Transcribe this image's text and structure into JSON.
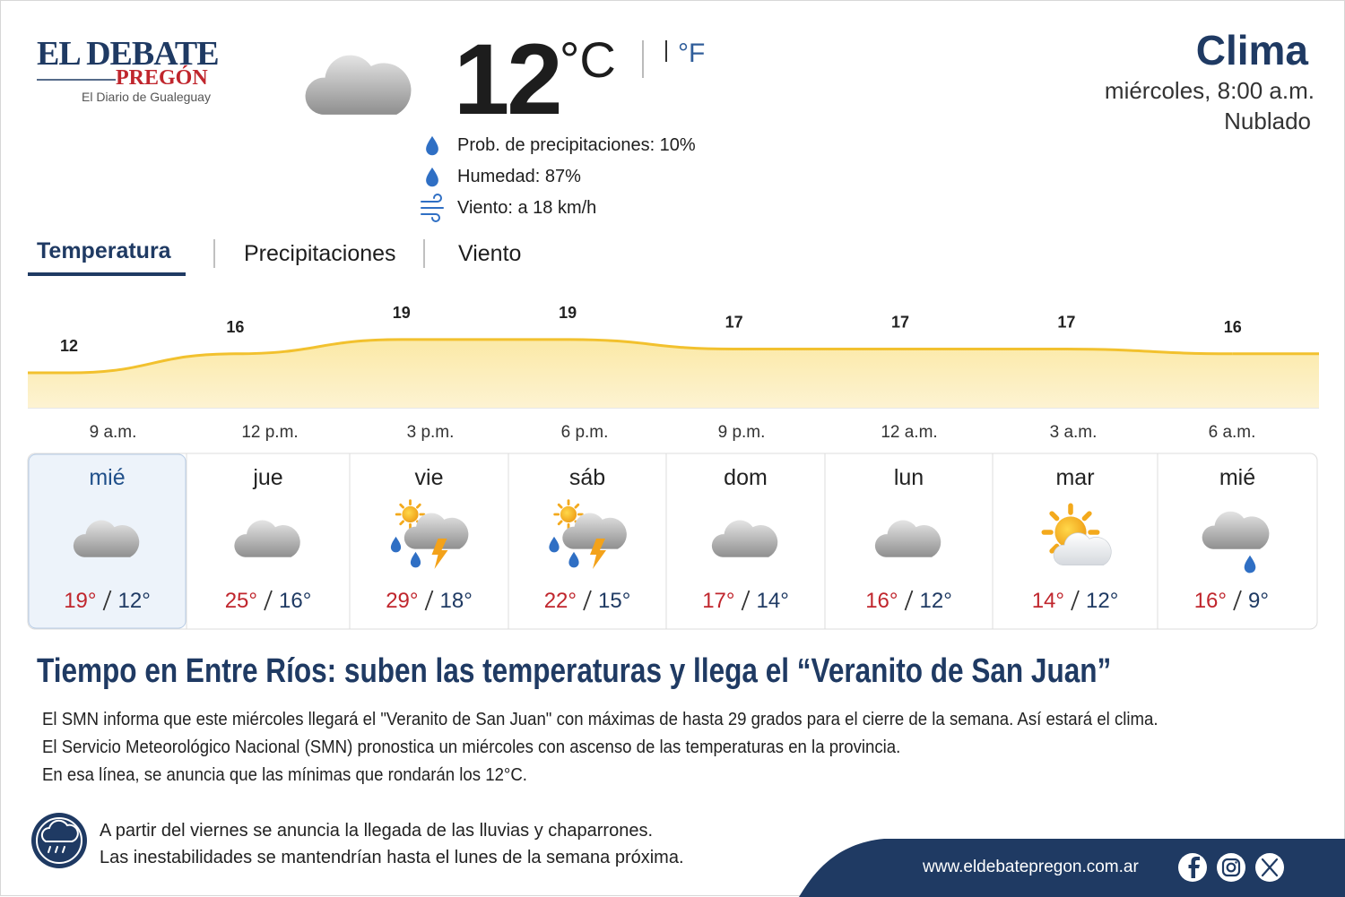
{
  "logo": {
    "line1": "EL DEBATE",
    "line2": "PREGÓN",
    "tagline": "El Diario de Gualeguay"
  },
  "current": {
    "temperature": 12,
    "unit_c": "°C",
    "unit_f": "°F",
    "details": [
      "Prob. de precipitaciones: 10%",
      "Humedad: 87%",
      "Viento: a 18 km/h"
    ]
  },
  "header": {
    "title": "Clima",
    "datetime": "miércoles, 8:00 a.m.",
    "condition": "Nublado"
  },
  "tabs": [
    "Temperatura",
    "Precipitaciones",
    "Viento"
  ],
  "hourly": {
    "times": [
      "9 a.m.",
      "12 p.m.",
      "3 p.m.",
      "6 p.m.",
      "9 p.m.",
      "12 a.m.",
      "3 a.m.",
      "6 a.m."
    ],
    "values": [
      12,
      16,
      19,
      19,
      17,
      17,
      17,
      16
    ]
  },
  "days": [
    {
      "day": "mié",
      "high": "19°",
      "low": "12°"
    },
    {
      "day": "jue",
      "high": "25°",
      "low": "16°"
    },
    {
      "day": "vie",
      "high": "29°",
      "low": "18°"
    },
    {
      "day": "sáb",
      "high": "22°",
      "low": "15°"
    },
    {
      "day": "dom",
      "high": "17°",
      "low": "14°"
    },
    {
      "day": "lun",
      "high": "16°",
      "low": "12°"
    },
    {
      "day": "mar",
      "high": "14°",
      "low": "12°"
    },
    {
      "day": "mié",
      "high": "16°",
      "low": "9°"
    }
  ],
  "article": {
    "headline": "Tiempo en Entre Ríos: suben las temperaturas y llega el “Veranito de San Juan”",
    "paragraphs": [
      "El SMN informa que este miércoles llegará el \"Veranito de San Juan\" con máximas de hasta 29 grados para el cierre de la semana. Así estará el clima.",
      "El Servicio Meteorológico Nacional (SMN) pronostica un miércoles con ascenso de las temperaturas en la provincia.",
      "En esa línea, se anuncia que las mínimas que rondarán los 12°C."
    ]
  },
  "notice": [
    "A partir del viernes se anuncia la llegada de las lluvias y chaparrones.",
    "Las inestabilidades se mantendrían hasta el lunes de la semana próxima."
  ],
  "footer": {
    "url": "www.eldebatepregon.com.ar"
  }
}
